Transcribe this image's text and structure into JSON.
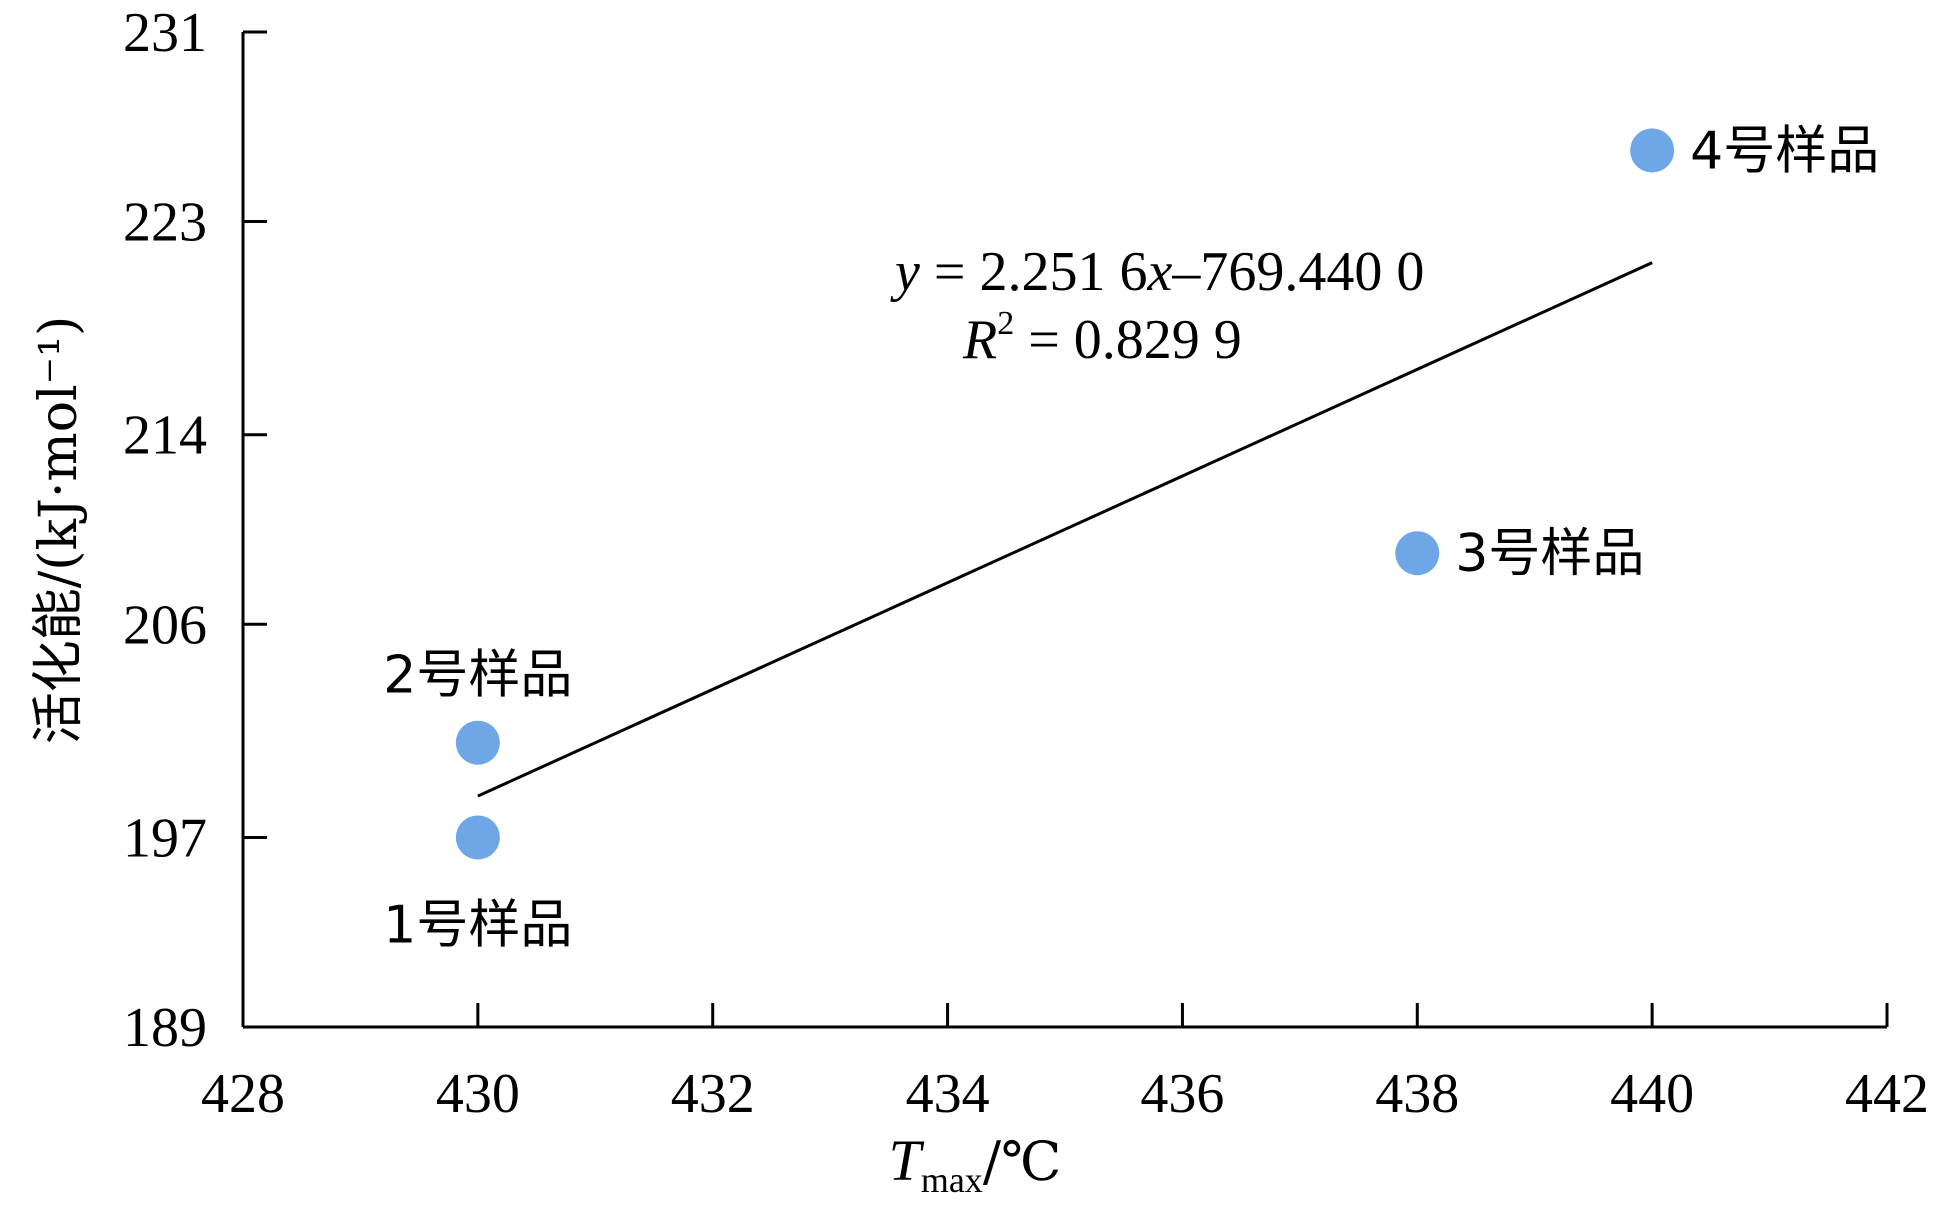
{
  "chart_data": {
    "type": "scatter",
    "xlabel_main": "T",
    "xlabel_sub": "max",
    "xlabel_unit": "/℃",
    "ylabel": "活化能/(kJ·mol⁻¹)",
    "xlim": [
      428,
      442
    ],
    "ylim": [
      189,
      231
    ],
    "x_ticks": [
      428,
      430,
      432,
      434,
      436,
      438,
      440,
      442
    ],
    "y_ticks": [
      189,
      197,
      206,
      214,
      223,
      231
    ],
    "points": [
      {
        "label": "1号样品",
        "x": 430,
        "y": 197
      },
      {
        "label": "2号样品",
        "x": 430,
        "y": 201
      },
      {
        "label": "3号样品",
        "x": 438,
        "y": 209
      },
      {
        "label": "4号样品",
        "x": 440,
        "y": 226
      }
    ],
    "point_color": "#6ea6e6",
    "trendline": {
      "slope": 2.2516,
      "intercept": -769.44,
      "x_range": [
        430,
        440
      ],
      "equation_y": "y",
      "equation_rest": " = 2.251 6",
      "equation_x": "x",
      "equation_tail": "–769.440 0",
      "r2_letter": "R",
      "r2_sup": "2",
      "r2_value": " = 0.829 9"
    },
    "grid": false,
    "legend": "none"
  }
}
